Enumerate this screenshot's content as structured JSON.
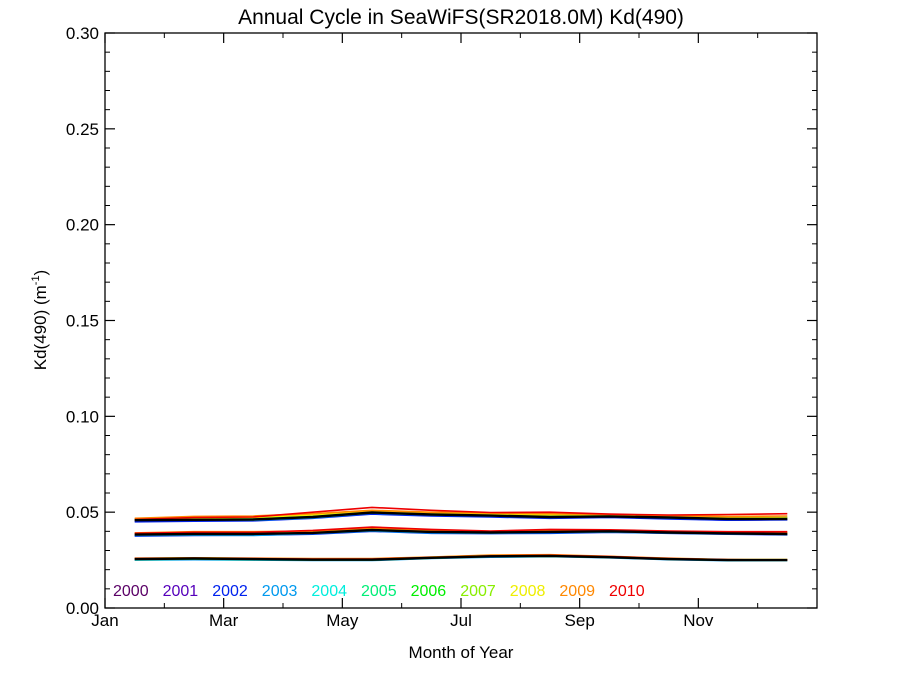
{
  "chart_data": {
    "type": "line",
    "title": "Annual Cycle in SeaWiFS(SR2018.0M) Kd(490)",
    "xlabel": "Month of Year",
    "ylabel_main": "Kd(490) (m",
    "ylabel_sup": "-1",
    "ylabel_close": ")",
    "xlim": [
      0,
      12
    ],
    "ylim": [
      0.0,
      0.3
    ],
    "x_ticks": [
      {
        "x": 0,
        "label": "Jan"
      },
      {
        "x": 2,
        "label": "Mar"
      },
      {
        "x": 4,
        "label": "May"
      },
      {
        "x": 6,
        "label": "Jul"
      },
      {
        "x": 8,
        "label": "Sep"
      },
      {
        "x": 10,
        "label": "Nov"
      }
    ],
    "y_ticks": [
      {
        "y": 0.0,
        "label": "0.00"
      },
      {
        "y": 0.05,
        "label": "0.05"
      },
      {
        "y": 0.1,
        "label": "0.10"
      },
      {
        "y": 0.15,
        "label": "0.15"
      },
      {
        "y": 0.2,
        "label": "0.20"
      },
      {
        "y": 0.25,
        "label": "0.25"
      },
      {
        "y": 0.3,
        "label": "0.30"
      }
    ],
    "x": [
      0.5,
      1.5,
      2.5,
      3.5,
      4.5,
      5.5,
      6.5,
      7.5,
      8.5,
      9.5,
      10.5,
      11.5
    ],
    "legend": [
      {
        "label": "2000",
        "color": "#5a0066"
      },
      {
        "label": "2001",
        "color": "#5500bb"
      },
      {
        "label": "2002",
        "color": "#0022ee"
      },
      {
        "label": "2003",
        "color": "#0099ee"
      },
      {
        "label": "2004",
        "color": "#00eedd"
      },
      {
        "label": "2005",
        "color": "#00ee77"
      },
      {
        "label": "2006",
        "color": "#00ee00"
      },
      {
        "label": "2007",
        "color": "#88ee00"
      },
      {
        "label": "2008",
        "color": "#eeee00"
      },
      {
        "label": "2009",
        "color": "#ff8800"
      },
      {
        "label": "2010",
        "color": "#ee0000"
      }
    ],
    "series": [
      {
        "group": "upper",
        "color": "#5a0066",
        "values": [
          0.0455,
          0.0458,
          0.046,
          0.0472,
          0.0492,
          0.0482,
          0.0478,
          0.047,
          0.0475,
          0.0468,
          0.0458,
          0.0462
        ]
      },
      {
        "group": "upper",
        "color": "#0022ee",
        "values": [
          0.045,
          0.0453,
          0.0455,
          0.0468,
          0.049,
          0.048,
          0.0475,
          0.0468,
          0.0472,
          0.0465,
          0.0458,
          0.046
        ]
      },
      {
        "group": "upper",
        "color": "#0099ee",
        "values": [
          0.046,
          0.0462,
          0.0458,
          0.047,
          0.0495,
          0.0485,
          0.048,
          0.0472,
          0.0478,
          0.047,
          0.0465,
          0.0468
        ]
      },
      {
        "group": "upper",
        "color": "#00ee77",
        "values": [
          0.0465,
          0.0468,
          0.047,
          0.0478,
          0.05,
          0.049,
          0.0485,
          0.0478,
          0.0482,
          0.0475,
          0.047,
          0.0472
        ]
      },
      {
        "group": "upper",
        "color": "#eeee00",
        "values": [
          0.0462,
          0.047,
          0.0472,
          0.0485,
          0.0505,
          0.0495,
          0.049,
          0.0485,
          0.0488,
          0.048,
          0.0472,
          0.047
        ]
      },
      {
        "group": "upper",
        "color": "#ff8800",
        "values": [
          0.0468,
          0.0478,
          0.048,
          0.0492,
          0.051,
          0.05,
          0.0495,
          0.0492,
          0.0488,
          0.0482,
          0.0478,
          0.048
        ]
      },
      {
        "group": "upper",
        "color": "#ee0000",
        "values": [
          0.0462,
          0.0472,
          0.0475,
          0.05,
          0.0525,
          0.051,
          0.0498,
          0.05,
          0.049,
          0.0485,
          0.0488,
          0.0492
        ]
      },
      {
        "group": "upper",
        "color": "#000000",
        "values": [
          0.0458,
          0.046,
          0.0462,
          0.0475,
          0.0498,
          0.0488,
          0.0482,
          0.0475,
          0.0478,
          0.0472,
          0.0465,
          0.0465
        ]
      },
      {
        "group": "middle",
        "color": "#5a0066",
        "values": [
          0.0382,
          0.0385,
          0.0385,
          0.039,
          0.0405,
          0.0395,
          0.0392,
          0.0395,
          0.0398,
          0.0392,
          0.0388,
          0.0385
        ]
      },
      {
        "group": "middle",
        "color": "#0022ee",
        "values": [
          0.0375,
          0.0378,
          0.038,
          0.0385,
          0.04,
          0.039,
          0.0388,
          0.039,
          0.0395,
          0.039,
          0.0385,
          0.0382
        ]
      },
      {
        "group": "middle",
        "color": "#0099ee",
        "values": [
          0.0378,
          0.038,
          0.0378,
          0.0388,
          0.0402,
          0.0392,
          0.039,
          0.0393,
          0.0396,
          0.0391,
          0.0386,
          0.0384
        ]
      },
      {
        "group": "middle",
        "color": "#eeee00",
        "values": [
          0.0388,
          0.0392,
          0.039,
          0.0398,
          0.041,
          0.04,
          0.0396,
          0.04,
          0.0402,
          0.0396,
          0.0392,
          0.039
        ]
      },
      {
        "group": "middle",
        "color": "#ff8800",
        "values": [
          0.0392,
          0.0398,
          0.0398,
          0.0402,
          0.0415,
          0.0405,
          0.04,
          0.0405,
          0.0405,
          0.04,
          0.0395,
          0.0392
        ]
      },
      {
        "group": "middle",
        "color": "#ee0000",
        "values": [
          0.039,
          0.0395,
          0.0395,
          0.0405,
          0.0422,
          0.041,
          0.0402,
          0.041,
          0.0408,
          0.0402,
          0.0398,
          0.0398
        ]
      },
      {
        "group": "middle",
        "color": "#000000",
        "values": [
          0.0383,
          0.0386,
          0.0386,
          0.0392,
          0.0407,
          0.0397,
          0.0394,
          0.0397,
          0.04,
          0.0394,
          0.0389,
          0.0386
        ]
      },
      {
        "group": "lower",
        "color": "#5a0066",
        "values": [
          0.0255,
          0.0258,
          0.0255,
          0.0252,
          0.0252,
          0.0262,
          0.027,
          0.0272,
          0.0265,
          0.0255,
          0.025,
          0.025
        ]
      },
      {
        "group": "lower",
        "color": "#0099ee",
        "values": [
          0.025,
          0.0252,
          0.025,
          0.0248,
          0.0248,
          0.0258,
          0.0265,
          0.0268,
          0.0262,
          0.0252,
          0.0247,
          0.0248
        ]
      },
      {
        "group": "lower",
        "color": "#00ee77",
        "values": [
          0.0252,
          0.0255,
          0.0252,
          0.025,
          0.025,
          0.026,
          0.0268,
          0.027,
          0.0264,
          0.0254,
          0.0249,
          0.0249
        ]
      },
      {
        "group": "lower",
        "color": "#eeee00",
        "values": [
          0.0258,
          0.0262,
          0.0258,
          0.0255,
          0.0256,
          0.0265,
          0.0275,
          0.0276,
          0.0268,
          0.0258,
          0.0252,
          0.0253
        ]
      },
      {
        "group": "lower",
        "color": "#ff8800",
        "values": [
          0.026,
          0.0262,
          0.026,
          0.0258,
          0.0258,
          0.0266,
          0.0276,
          0.0278,
          0.027,
          0.026,
          0.0253,
          0.0252
        ]
      },
      {
        "group": "lower",
        "color": "#ee0000",
        "values": [
          0.0258,
          0.026,
          0.0258,
          0.0255,
          0.0255,
          0.0264,
          0.0272,
          0.0275,
          0.0268,
          0.0258,
          0.0252,
          0.025
        ]
      },
      {
        "group": "lower",
        "color": "#000000",
        "values": [
          0.0255,
          0.0258,
          0.0255,
          0.0252,
          0.0252,
          0.0262,
          0.027,
          0.0272,
          0.0265,
          0.0255,
          0.025,
          0.025
        ]
      }
    ]
  }
}
